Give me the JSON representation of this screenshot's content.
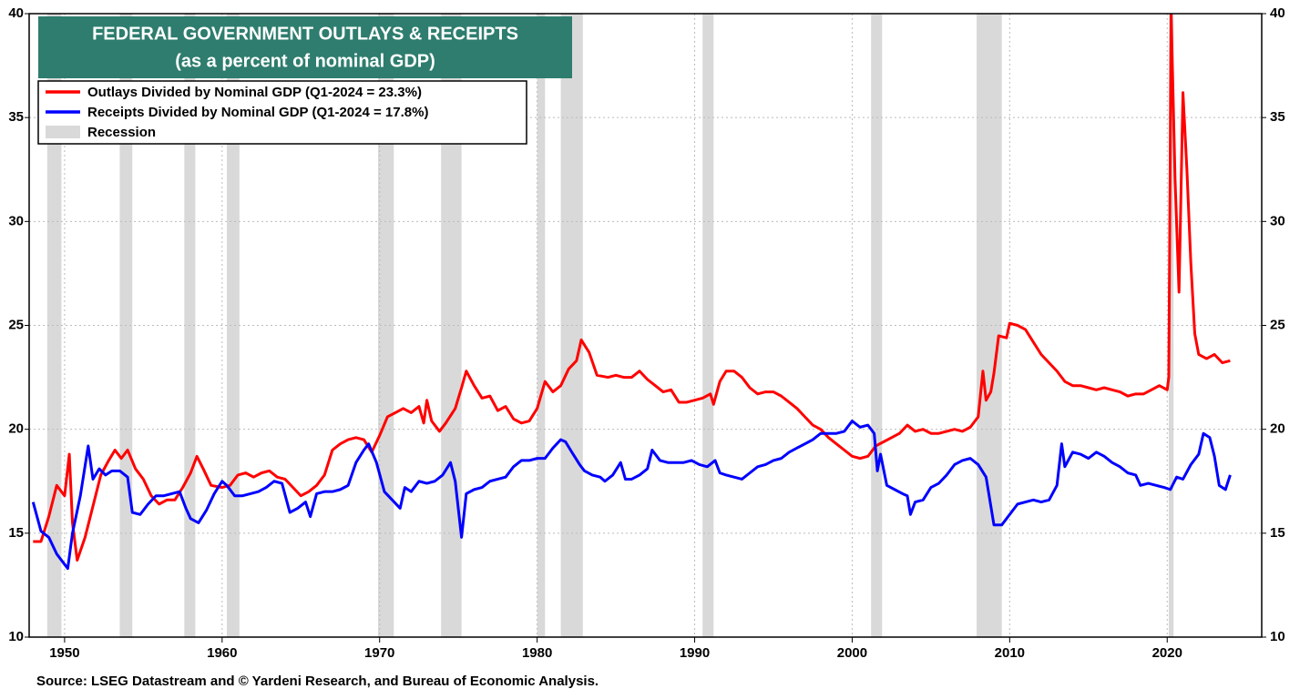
{
  "chart_data": {
    "type": "line",
    "title": "FEDERAL GOVERNMENT OUTLAYS & RECEIPTS",
    "subtitle": "(as a percent of nominal GDP)",
    "source": "Source: LSEG Datastream and © Yardeni Research, and Bureau of Economic Analysis.",
    "xlim": [
      1947.75,
      2026
    ],
    "xticks": [
      1950,
      1960,
      1970,
      1980,
      1990,
      2000,
      2010,
      2020
    ],
    "ylim": [
      10,
      40
    ],
    "yticks": [
      10,
      15,
      20,
      25,
      30,
      35,
      40
    ],
    "y2lim": [
      10,
      40
    ],
    "y2ticks": [
      10,
      15,
      20,
      25,
      30,
      35,
      40
    ],
    "grid": true,
    "legend": "upper left",
    "recession_label": "Recession",
    "recession_color": "#d9d9d9",
    "recessions": [
      [
        1948.9,
        1949.8
      ],
      [
        1953.5,
        1954.3
      ],
      [
        1957.6,
        1958.3
      ],
      [
        1960.3,
        1961.1
      ],
      [
        1969.9,
        1970.9
      ],
      [
        1973.9,
        1975.2
      ],
      [
        1980.0,
        1980.5
      ],
      [
        1981.5,
        1982.9
      ],
      [
        1990.5,
        1991.2
      ],
      [
        2001.2,
        2001.9
      ],
      [
        2007.9,
        2009.5
      ],
      [
        2020.1,
        2020.4
      ]
    ],
    "series": [
      {
        "name": "Outlays Divided by Nominal GDP (Q1-2024 = 23.3%)",
        "color": "#ff0000",
        "x": [
          1948.0,
          1948.5,
          1949.0,
          1949.5,
          1950.0,
          1950.3,
          1950.5,
          1950.8,
          1951.3,
          1951.8,
          1952.3,
          1952.8,
          1953.2,
          1953.6,
          1954.0,
          1954.5,
          1955.0,
          1955.5,
          1956.0,
          1956.5,
          1957.0,
          1957.5,
          1958.0,
          1958.4,
          1958.8,
          1959.3,
          1960.0,
          1960.5,
          1961.0,
          1961.5,
          1962.0,
          1962.5,
          1963.0,
          1963.5,
          1964.0,
          1964.5,
          1965.0,
          1965.5,
          1966.0,
          1966.5,
          1967.0,
          1967.5,
          1968.0,
          1968.5,
          1969.0,
          1969.5,
          1970.0,
          1970.5,
          1971.0,
          1971.5,
          1972.0,
          1972.5,
          1972.8,
          1973.0,
          1973.3,
          1973.8,
          1974.2,
          1974.8,
          1975.2,
          1975.5,
          1976.0,
          1976.5,
          1977.0,
          1977.5,
          1978.0,
          1978.5,
          1979.0,
          1979.5,
          1980.0,
          1980.5,
          1981.0,
          1981.5,
          1982.0,
          1982.5,
          1982.8,
          1983.3,
          1983.8,
          1984.5,
          1985.0,
          1985.5,
          1986.0,
          1986.5,
          1987.0,
          1987.5,
          1988.0,
          1988.5,
          1989.0,
          1989.5,
          1990.0,
          1990.5,
          1991.0,
          1991.2,
          1991.6,
          1992.0,
          1992.5,
          1993.0,
          1993.5,
          1994.0,
          1994.5,
          1995.0,
          1995.5,
          1996.0,
          1996.5,
          1997.0,
          1997.5,
          1998.0,
          1998.5,
          1999.0,
          1999.5,
          2000.0,
          2000.5,
          2001.0,
          2001.5,
          2002.0,
          2002.5,
          2003.0,
          2003.5,
          2004.0,
          2004.5,
          2005.0,
          2005.5,
          2006.0,
          2006.5,
          2007.0,
          2007.5,
          2008.0,
          2008.3,
          2008.5,
          2008.8,
          2009.0,
          2009.3,
          2009.8,
          2010.0,
          2010.5,
          2011.0,
          2011.5,
          2012.0,
          2012.5,
          2013.0,
          2013.5,
          2014.0,
          2014.5,
          2015.0,
          2015.5,
          2016.0,
          2016.5,
          2017.0,
          2017.5,
          2018.0,
          2018.5,
          2019.0,
          2019.5,
          2020.0,
          2020.1,
          2020.25,
          2020.5,
          2020.75,
          2021.0,
          2021.25,
          2021.5,
          2021.75,
          2022.0,
          2022.5,
          2023.0,
          2023.5,
          2024.0
        ],
        "values": [
          14.6,
          14.6,
          15.8,
          17.3,
          16.8,
          18.8,
          15.5,
          13.7,
          14.8,
          16.3,
          17.8,
          18.5,
          19.0,
          18.6,
          19.0,
          18.1,
          17.6,
          16.8,
          16.4,
          16.6,
          16.6,
          17.2,
          17.9,
          18.7,
          18.1,
          17.3,
          17.2,
          17.3,
          17.8,
          17.9,
          17.7,
          17.9,
          18.0,
          17.7,
          17.6,
          17.2,
          16.8,
          17.0,
          17.3,
          17.8,
          19.0,
          19.3,
          19.5,
          19.6,
          19.5,
          18.9,
          19.7,
          20.6,
          20.8,
          21.0,
          20.8,
          21.1,
          20.3,
          21.4,
          20.4,
          19.9,
          20.3,
          21.0,
          22.0,
          22.8,
          22.1,
          21.5,
          21.6,
          20.9,
          21.1,
          20.5,
          20.3,
          20.4,
          21.0,
          22.3,
          21.8,
          22.1,
          22.9,
          23.3,
          24.3,
          23.7,
          22.6,
          22.5,
          22.6,
          22.5,
          22.5,
          22.8,
          22.4,
          22.1,
          21.8,
          21.9,
          21.3,
          21.3,
          21.4,
          21.5,
          21.7,
          21.2,
          22.3,
          22.8,
          22.8,
          22.5,
          22.0,
          21.7,
          21.8,
          21.8,
          21.6,
          21.3,
          21.0,
          20.6,
          20.2,
          20.0,
          19.6,
          19.3,
          19.0,
          18.7,
          18.6,
          18.7,
          19.2,
          19.4,
          19.6,
          19.8,
          20.2,
          19.9,
          20.0,
          19.8,
          19.8,
          19.9,
          20.0,
          19.9,
          20.1,
          20.6,
          22.8,
          21.4,
          21.8,
          22.7,
          24.5,
          24.4,
          25.1,
          25.0,
          24.8,
          24.2,
          23.6,
          23.2,
          22.8,
          22.3,
          22.1,
          22.1,
          22.0,
          21.9,
          22.0,
          21.9,
          21.8,
          21.6,
          21.7,
          21.7,
          21.9,
          22.1,
          21.9,
          22.5,
          40.0,
          32.0,
          26.6,
          36.2,
          32.5,
          28.0,
          24.6,
          23.6,
          23.4,
          23.6,
          23.2,
          23.3
        ]
      },
      {
        "name": "Receipts Divided by Nominal GDP (Q1-2024 = 17.8%)",
        "color": "#0000ff",
        "x": [
          1948.0,
          1948.5,
          1949.0,
          1949.5,
          1950.0,
          1950.2,
          1950.5,
          1951.0,
          1951.5,
          1951.8,
          1952.2,
          1952.6,
          1953.0,
          1953.5,
          1954.0,
          1954.3,
          1954.8,
          1955.3,
          1955.8,
          1956.3,
          1956.8,
          1957.3,
          1957.7,
          1958.0,
          1958.5,
          1959.0,
          1959.5,
          1960.0,
          1960.3,
          1960.8,
          1961.3,
          1961.8,
          1962.3,
          1962.8,
          1963.3,
          1963.8,
          1964.3,
          1964.8,
          1965.3,
          1965.6,
          1966.0,
          1966.5,
          1967.0,
          1967.5,
          1968.0,
          1968.5,
          1969.0,
          1969.3,
          1969.8,
          1970.3,
          1970.8,
          1971.3,
          1971.6,
          1972.0,
          1972.5,
          1973.0,
          1973.5,
          1974.0,
          1974.5,
          1974.8,
          1975.2,
          1975.5,
          1976.0,
          1976.5,
          1977.0,
          1977.5,
          1978.0,
          1978.5,
          1979.0,
          1979.5,
          1980.0,
          1980.5,
          1981.0,
          1981.5,
          1981.8,
          1982.2,
          1982.7,
          1983.0,
          1983.5,
          1984.0,
          1984.3,
          1984.8,
          1985.3,
          1985.6,
          1986.0,
          1986.5,
          1987.0,
          1987.3,
          1987.8,
          1988.3,
          1988.8,
          1989.3,
          1989.8,
          1990.3,
          1990.8,
          1991.3,
          1991.6,
          1992.0,
          1992.5,
          1993.0,
          1993.5,
          1994.0,
          1994.5,
          1995.0,
          1995.5,
          1996.0,
          1996.5,
          1997.0,
          1997.5,
          1998.0,
          1998.5,
          1999.0,
          1999.5,
          2000.0,
          2000.5,
          2001.0,
          2001.4,
          2001.6,
          2001.8,
          2002.2,
          2002.7,
          2003.2,
          2003.5,
          2003.7,
          2004.0,
          2004.5,
          2005.0,
          2005.5,
          2006.0,
          2006.5,
          2007.0,
          2007.5,
          2008.0,
          2008.5,
          2009.0,
          2009.5,
          2010.0,
          2010.5,
          2011.0,
          2011.5,
          2012.0,
          2012.5,
          2013.0,
          2013.3,
          2013.5,
          2014.0,
          2014.5,
          2015.0,
          2015.5,
          2016.0,
          2016.5,
          2017.0,
          2017.5,
          2018.0,
          2018.3,
          2018.8,
          2019.3,
          2019.8,
          2020.2,
          2020.6,
          2021.0,
          2021.5,
          2022.0,
          2022.3,
          2022.7,
          2023.0,
          2023.3,
          2023.7,
          2024.0
        ],
        "values": [
          16.5,
          15.1,
          14.8,
          14.0,
          13.5,
          13.3,
          15.0,
          16.8,
          19.2,
          17.6,
          18.1,
          17.8,
          18.0,
          18.0,
          17.7,
          16.0,
          15.9,
          16.4,
          16.8,
          16.8,
          16.9,
          17.0,
          16.2,
          15.7,
          15.5,
          16.1,
          16.9,
          17.5,
          17.3,
          16.8,
          16.8,
          16.9,
          17.0,
          17.2,
          17.5,
          17.4,
          16.0,
          16.2,
          16.5,
          15.8,
          16.9,
          17.0,
          17.0,
          17.1,
          17.3,
          18.4,
          19.0,
          19.3,
          18.4,
          17.0,
          16.6,
          16.2,
          17.2,
          17.0,
          17.5,
          17.4,
          17.5,
          17.8,
          18.4,
          17.5,
          14.8,
          16.9,
          17.1,
          17.2,
          17.5,
          17.6,
          17.7,
          18.2,
          18.5,
          18.5,
          18.6,
          18.6,
          19.1,
          19.5,
          19.4,
          18.9,
          18.3,
          18.0,
          17.8,
          17.7,
          17.5,
          17.8,
          18.4,
          17.6,
          17.6,
          17.8,
          18.1,
          19.0,
          18.5,
          18.4,
          18.4,
          18.4,
          18.5,
          18.3,
          18.2,
          18.5,
          17.9,
          17.8,
          17.7,
          17.6,
          17.9,
          18.2,
          18.3,
          18.5,
          18.6,
          18.9,
          19.1,
          19.3,
          19.5,
          19.8,
          19.8,
          19.8,
          19.9,
          20.4,
          20.1,
          20.2,
          19.8,
          18.0,
          18.8,
          17.3,
          17.1,
          16.9,
          16.8,
          15.9,
          16.5,
          16.6,
          17.2,
          17.4,
          17.8,
          18.3,
          18.5,
          18.6,
          18.3,
          17.7,
          15.4,
          15.4,
          15.9,
          16.4,
          16.5,
          16.6,
          16.5,
          16.6,
          17.3,
          19.3,
          18.2,
          18.9,
          18.8,
          18.6,
          18.9,
          18.7,
          18.4,
          18.2,
          17.9,
          17.8,
          17.3,
          17.4,
          17.3,
          17.2,
          17.1,
          17.7,
          17.6,
          18.3,
          18.8,
          19.8,
          19.6,
          18.7,
          17.3,
          17.1,
          17.8
        ]
      }
    ]
  }
}
